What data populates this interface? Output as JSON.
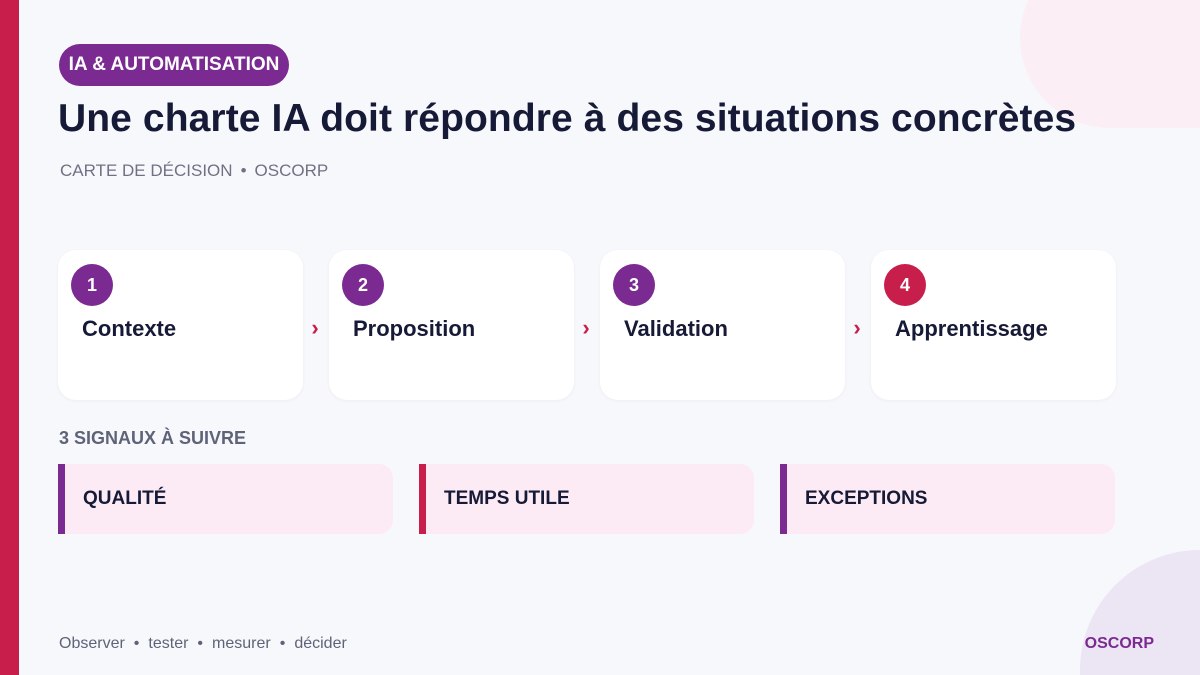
{
  "tag": "IA & AUTOMATISATION",
  "title": "Une charte IA doit répondre à des situations concrètes",
  "subtitle": {
    "category": "CARTE DE DÉCISION",
    "separator": "•",
    "brand": "OSCORP"
  },
  "steps": [
    {
      "number": "1",
      "label": "Contexte"
    },
    {
      "number": "2",
      "label": "Proposition"
    },
    {
      "number": "3",
      "label": "Validation"
    },
    {
      "number": "4",
      "label": "Apprentissage"
    }
  ],
  "arrow_glyph": "›",
  "signals": {
    "title": "3 SIGNAUX À SUIVRE",
    "items": [
      "QUALITÉ",
      "TEMPS UTILE",
      "EXCEPTIONS"
    ]
  },
  "footer": {
    "words": [
      "Observer",
      "tester",
      "mesurer",
      "décider"
    ],
    "separator": "•",
    "brand": "OSCORP"
  },
  "colors": {
    "accent_purple": "#7a2a91",
    "accent_pink": "#c81e4b",
    "signal_background": "#fceaf4",
    "text_dark": "#161a36"
  }
}
